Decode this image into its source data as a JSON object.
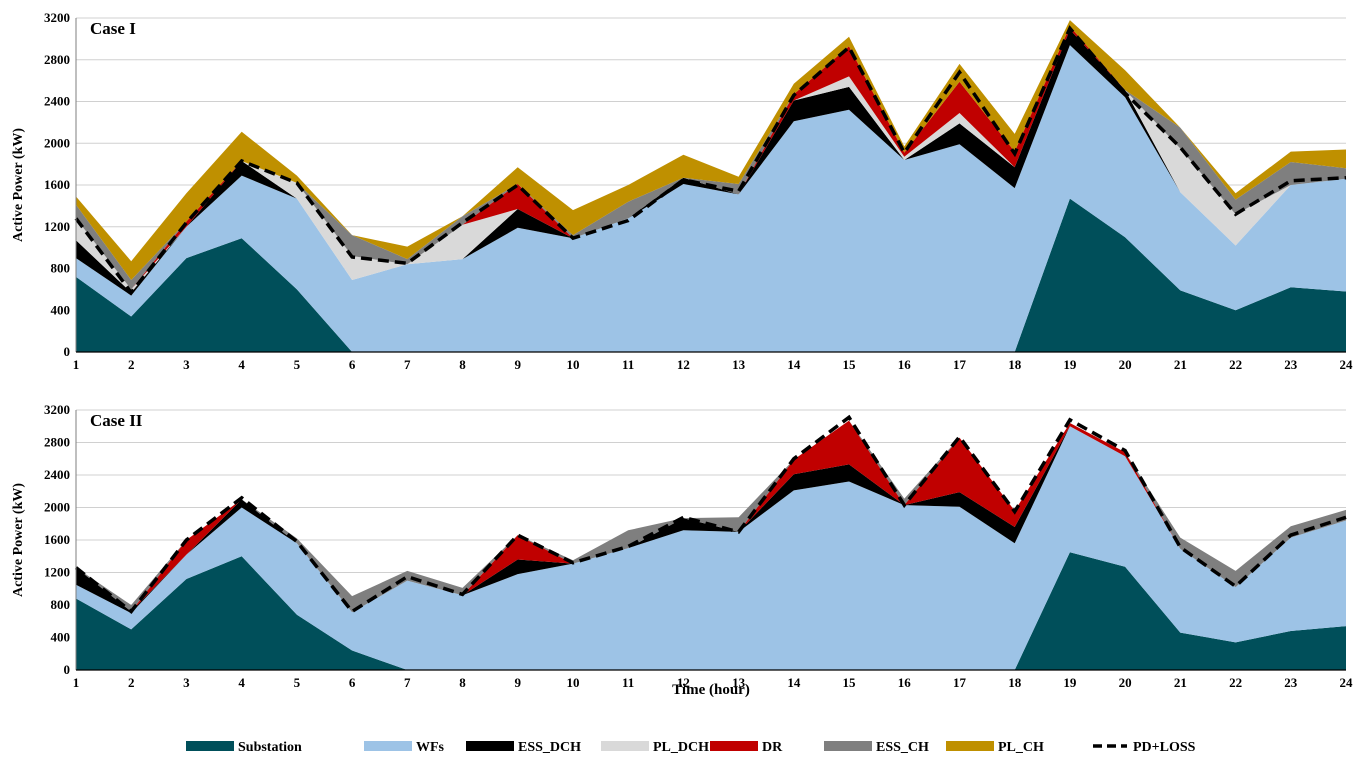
{
  "chart_data": {
    "type": "area",
    "stacked": true,
    "x": [
      1,
      2,
      3,
      4,
      5,
      6,
      7,
      8,
      9,
      10,
      11,
      12,
      13,
      14,
      15,
      16,
      17,
      18,
      19,
      20,
      21,
      22,
      23,
      24
    ],
    "xlabel": "Time (hour)",
    "ylabel": "Active Power (kW)",
    "ylim": [
      0,
      3200
    ],
    "yticks": [
      0,
      400,
      800,
      1200,
      1600,
      2000,
      2400,
      2800,
      3200
    ],
    "grid": true,
    "legend_position": "bottom",
    "legend": [
      {
        "key": "substation",
        "label": "Substation",
        "color": "#004f5a",
        "style": "area"
      },
      {
        "key": "wfs",
        "label": "WFs",
        "color": "#9dc3e6",
        "style": "area"
      },
      {
        "key": "ess_dch",
        "label": "ESS_DCH",
        "color": "#000000",
        "style": "area"
      },
      {
        "key": "pl_dch",
        "label": "PL_DCH",
        "color": "#d9d9d9",
        "style": "area"
      },
      {
        "key": "dr",
        "label": "DR",
        "color": "#c00000",
        "style": "area"
      },
      {
        "key": "ess_ch",
        "label": "ESS_CH",
        "color": "#7f7f7f",
        "style": "area"
      },
      {
        "key": "pl_ch",
        "label": "PL_CH",
        "color": "#bf9000",
        "style": "area"
      },
      {
        "key": "pd_loss",
        "label": "PD+LOSS",
        "color": "#000000",
        "style": "dashed-line"
      }
    ],
    "panels": [
      {
        "title": "Case I",
        "series": [
          {
            "key": "substation",
            "name": "Substation",
            "values": [
              720,
              340,
              900,
              1090,
              600,
              0,
              0,
              0,
              0,
              0,
              0,
              0,
              0,
              0,
              0,
              0,
              0,
              0,
              1470,
              1100,
              590,
              400,
              620,
              580
            ]
          },
          {
            "key": "wfs",
            "name": "WFs",
            "values": [
              180,
              200,
              300,
              600,
              870,
              690,
              840,
              890,
              1190,
              1090,
              1280,
              1610,
              1510,
              2210,
              2320,
              1840,
              1990,
              1570,
              1470,
              1340,
              940,
              620,
              980,
              1080
            ]
          },
          {
            "key": "ess_dch",
            "name": "ESS_DCH",
            "values": [
              170,
              30,
              0,
              140,
              0,
              0,
              0,
              0,
              180,
              0,
              0,
              60,
              0,
              200,
              220,
              0,
              200,
              200,
              150,
              70,
              0,
              0,
              0,
              0
            ]
          },
          {
            "key": "pl_dch",
            "name": "PL_DCH",
            "values": [
              210,
              30,
              0,
              0,
              150,
              230,
              0,
              330,
              0,
              0,
              0,
              0,
              0,
              0,
              100,
              30,
              100,
              0,
              0,
              0,
              420,
              300,
              0,
              0
            ]
          },
          {
            "key": "dr",
            "name": "DR",
            "values": [
              0,
              0,
              50,
              0,
              0,
              0,
              0,
              0,
              240,
              0,
              0,
              0,
              0,
              60,
              290,
              40,
              300,
              150,
              30,
              0,
              0,
              0,
              0,
              0
            ]
          },
          {
            "key": "ess_ch",
            "name": "ESS_CH",
            "values": [
              130,
              90,
              0,
              0,
              0,
              200,
              50,
              80,
              0,
              30,
              160,
              0,
              100,
              0,
              0,
              0,
              0,
              0,
              0,
              0,
              200,
              140,
              220,
              100
            ]
          },
          {
            "key": "pl_ch",
            "name": "PL_CH",
            "values": [
              80,
              180,
              270,
              280,
              70,
              0,
              120,
              0,
              160,
              240,
              160,
              220,
              70,
              100,
              90,
              60,
              170,
              170,
              60,
              190,
              0,
              60,
              100,
              180
            ]
          }
        ],
        "pd_loss": [
          1280,
          570,
          1240,
          1830,
          1620,
          910,
          850,
          1240,
          1600,
          1090,
          1260,
          1650,
          1540,
          2460,
          2920,
          1910,
          2680,
          1900,
          3100,
          2480,
          1960,
          1320,
          1640,
          1670
        ]
      },
      {
        "title": "Case II",
        "series": [
          {
            "key": "substation",
            "name": "Substation",
            "values": [
              880,
              500,
              1120,
              1400,
              680,
              240,
              0,
              0,
              0,
              0,
              0,
              0,
              0,
              0,
              0,
              0,
              0,
              0,
              1450,
              1270,
              460,
              340,
              480,
              540
            ]
          },
          {
            "key": "wfs",
            "name": "WFs",
            "values": [
              170,
              200,
              300,
              600,
              880,
              470,
              1100,
              920,
              1180,
              1310,
              1500,
              1720,
              1700,
              2210,
              2320,
              2030,
              2010,
              1560,
              1550,
              1360,
              1030,
              680,
              1150,
              1300
            ]
          },
          {
            "key": "ess_dch",
            "name": "ESS_DCH",
            "values": [
              210,
              20,
              0,
              100,
              0,
              0,
              0,
              0,
              180,
              0,
              0,
              150,
              0,
              200,
              210,
              0,
              180,
              200,
              0,
              0,
              0,
              0,
              0,
              0
            ]
          },
          {
            "key": "pl_dch",
            "name": "PL_DCH",
            "values": [
              0,
              0,
              0,
              0,
              0,
              0,
              0,
              0,
              0,
              0,
              0,
              0,
              0,
              0,
              0,
              0,
              0,
              0,
              0,
              0,
              0,
              0,
              0,
              0
            ]
          },
          {
            "key": "dr",
            "name": "DR",
            "values": [
              0,
              0,
              180,
              0,
              0,
              0,
              0,
              0,
              300,
              0,
              0,
              0,
              0,
              180,
              540,
              0,
              670,
              200,
              40,
              50,
              0,
              0,
              0,
              0
            ]
          },
          {
            "key": "ess_ch",
            "name": "ESS_CH",
            "values": [
              0,
              80,
              0,
              0,
              60,
              200,
              120,
              90,
              0,
              40,
              220,
              0,
              180,
              0,
              0,
              80,
              0,
              0,
              0,
              0,
              140,
              200,
              140,
              130
            ]
          },
          {
            "key": "pl_ch",
            "name": "PL_CH",
            "values": [
              0,
              0,
              0,
              0,
              0,
              0,
              0,
              0,
              0,
              0,
              0,
              0,
              0,
              0,
              0,
              0,
              0,
              0,
              0,
              0,
              0,
              0,
              0,
              0
            ]
          }
        ],
        "pd_loss": [
          1260,
          720,
          1600,
          2120,
          1580,
          720,
          1150,
          930,
          1660,
          1320,
          1520,
          1880,
          1700,
          2600,
          3110,
          2030,
          2870,
          1950,
          3080,
          2700,
          1510,
          1030,
          1660,
          1880
        ]
      }
    ]
  }
}
